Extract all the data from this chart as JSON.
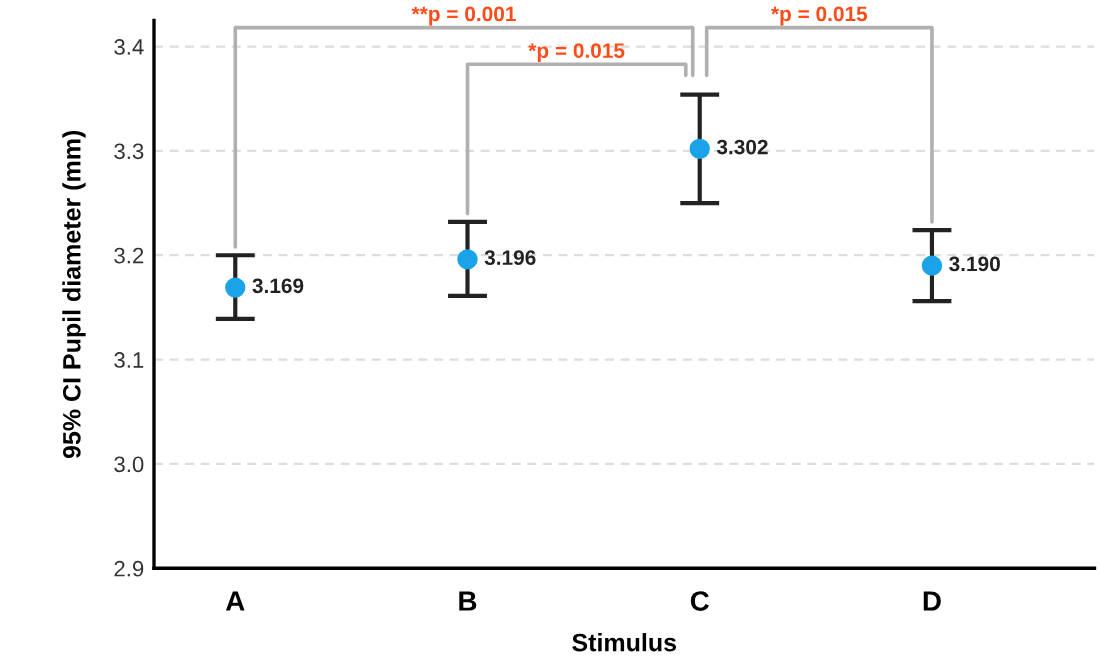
{
  "chart_data": {
    "type": "scatter",
    "xlabel": "Stimulus",
    "ylabel": "95% CI Pupil diameter (mm)",
    "categories": [
      "A",
      "B",
      "C",
      "D"
    ],
    "values": [
      3.169,
      3.196,
      3.302,
      3.19
    ],
    "errors": [
      [
        3.139,
        3.2
      ],
      [
        3.161,
        3.232
      ],
      [
        3.25,
        3.354
      ],
      [
        3.156,
        3.224
      ]
    ],
    "color": "#1aa3e8",
    "marker": "circle",
    "data_labels": true,
    "value_labels": [
      "3.169",
      "3.196",
      "3.302",
      "3.190"
    ],
    "ylim": [
      2.9,
      3.425
    ],
    "yticks": [
      2.9,
      {
        "value": 3,
        "label": "3.0"
      },
      3.1,
      3.2,
      3.3,
      3.4
    ],
    "grid": "y",
    "annotations": [
      "**p = 0.001",
      "*p = 0.015",
      "*p = 0.015"
    ]
  }
}
